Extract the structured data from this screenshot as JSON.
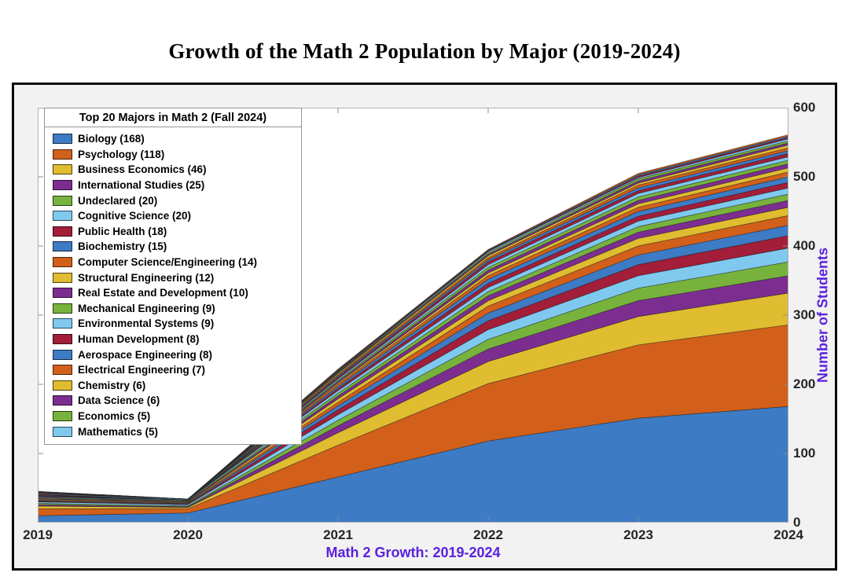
{
  "page_title": "Growth of the Math 2 Population by Major (2019-2024)",
  "colors": {
    "axis_label_purple": "#5a21dd",
    "figure_background": "#f2f2f2",
    "plot_background": "#ffffff",
    "axis_frame_gray": "#b0b0b0",
    "tick_gray": "#8c8c8c",
    "tick_text": "#262626"
  },
  "chart_data": {
    "type": "area",
    "stacked": true,
    "grid": false,
    "title": "Growth of the Math 2 Population by Major (2019-2024)",
    "xlabel": "Math 2 Growth: 2019-2024",
    "ylabel": "Number of Students",
    "y_axis_location": "right",
    "x": [
      2019,
      2020,
      2021,
      2022,
      2023,
      2024
    ],
    "x_tick_labels": [
      "2019",
      "2020",
      "2021",
      "2022",
      "2023",
      "2024"
    ],
    "y_ticks": [
      0,
      100,
      200,
      300,
      400,
      500,
      600
    ],
    "ylim": [
      0,
      600
    ],
    "legend": {
      "title": "Top 20 Majors in Math 2 (Fall 2024)",
      "position": "top-left"
    },
    "palette": [
      "#3d7bc4",
      "#d2601a",
      "#e0bc30",
      "#7c2e90",
      "#77b33c",
      "#7fc9ef",
      "#a21e39"
    ],
    "series": [
      {
        "name": "Biology",
        "label": "Biology (168)",
        "fall_2024": 168,
        "values": [
          10,
          14,
          66,
          118,
          151,
          168
        ]
      },
      {
        "name": "Psychology",
        "label": "Psychology (118)",
        "fall_2024": 118,
        "values": [
          10,
          6,
          46,
          83,
          106,
          118
        ]
      },
      {
        "name": "Business Economics",
        "label": "Business Economics (46)",
        "fall_2024": 46,
        "values": [
          4,
          2,
          18,
          32,
          41,
          46
        ]
      },
      {
        "name": "International Studies",
        "label": "International Studies (25)",
        "fall_2024": 25,
        "values": [
          2,
          1,
          10,
          18,
          23,
          25
        ]
      },
      {
        "name": "Undeclared",
        "label": "Undeclared (20)",
        "fall_2024": 20,
        "values": [
          2,
          1,
          8,
          14,
          18,
          20
        ]
      },
      {
        "name": "Cognitive Science",
        "label": "Cognitive Science (20)",
        "fall_2024": 20,
        "values": [
          2,
          2,
          8,
          14,
          18,
          20
        ]
      },
      {
        "name": "Public Health",
        "label": "Public Health (18)",
        "fall_2024": 18,
        "values": [
          1,
          1,
          7,
          13,
          16,
          18
        ]
      },
      {
        "name": "Biochemistry",
        "label": "Biochemistry (15)",
        "fall_2024": 15,
        "values": [
          1,
          1,
          6,
          11,
          14,
          15
        ]
      },
      {
        "name": "Computer Science/Engineering",
        "label": "Computer Science/Engineering (14)",
        "fall_2024": 14,
        "values": [
          1,
          1,
          5,
          10,
          13,
          14
        ]
      },
      {
        "name": "Structural Engineering",
        "label": "Structural Engineering (12)",
        "fall_2024": 12,
        "values": [
          1,
          1,
          5,
          8,
          11,
          12
        ]
      },
      {
        "name": "Real Estate and Development",
        "label": "Real Estate and Development (10)",
        "fall_2024": 10,
        "values": [
          1,
          1,
          4,
          7,
          9,
          10
        ]
      },
      {
        "name": "Mechanical Engineering",
        "label": "Mechanical Engineering (9)",
        "fall_2024": 9,
        "values": [
          1,
          1,
          4,
          6,
          8,
          9
        ]
      },
      {
        "name": "Environmental Systems",
        "label": "Environmental Systems (9)",
        "fall_2024": 9,
        "values": [
          1,
          1,
          4,
          6,
          8,
          9
        ]
      },
      {
        "name": "Human Development",
        "label": "Human Development (8)",
        "fall_2024": 8,
        "values": [
          1,
          0,
          3,
          6,
          7,
          8
        ]
      },
      {
        "name": "Aerospace Engineering",
        "label": "Aerospace Engineering (8)",
        "fall_2024": 8,
        "values": [
          1,
          0,
          3,
          6,
          7,
          8
        ]
      },
      {
        "name": "Electrical Engineering",
        "label": "Electrical Engineering (7)",
        "fall_2024": 7,
        "values": [
          1,
          0,
          3,
          5,
          6,
          7
        ]
      },
      {
        "name": "Chemistry",
        "label": "Chemistry (6)",
        "fall_2024": 6,
        "values": [
          0,
          0,
          2,
          4,
          5,
          6
        ]
      },
      {
        "name": "Data Science",
        "label": "Data Science (6)",
        "fall_2024": 6,
        "values": [
          1,
          0,
          2,
          4,
          5,
          6
        ]
      },
      {
        "name": "Economics",
        "label": "Economics (5)",
        "fall_2024": 5,
        "values": [
          0,
          0,
          2,
          4,
          5,
          5
        ]
      },
      {
        "name": "Mathematics",
        "label": "Mathematics (5)",
        "fall_2024": 5,
        "values": [
          1,
          1,
          2,
          4,
          5,
          5
        ]
      }
    ],
    "other_series_not_in_legend": [
      {
        "values": [
          1,
          0,
          2,
          4,
          4,
          5
        ]
      },
      {
        "values": [
          0,
          0,
          2,
          3,
          4,
          4
        ]
      },
      {
        "values": [
          1,
          0,
          2,
          3,
          4,
          4
        ]
      },
      {
        "values": [
          0,
          0,
          2,
          3,
          3,
          4
        ]
      },
      {
        "values": [
          0,
          0,
          1,
          2,
          3,
          3
        ]
      },
      {
        "values": [
          0,
          0,
          1,
          2,
          3,
          3
        ]
      },
      {
        "values": [
          1,
          0,
          1,
          2,
          2,
          3
        ]
      },
      {
        "values": [
          0,
          0,
          1,
          1,
          2,
          2
        ]
      },
      {
        "values": [
          0,
          0,
          1,
          1,
          2,
          2
        ]
      },
      {
        "values": [
          0,
          0,
          1,
          1,
          2,
          2
        ]
      }
    ]
  }
}
